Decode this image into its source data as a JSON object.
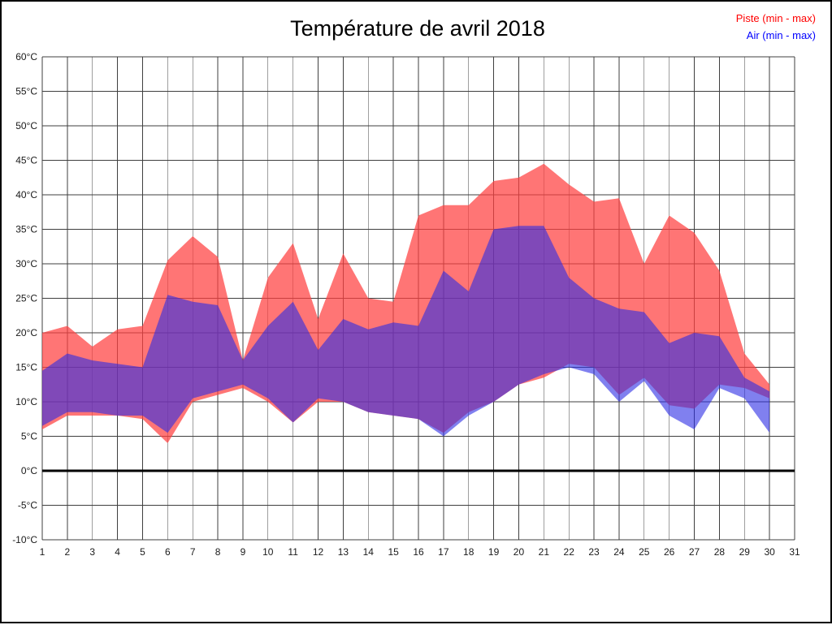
{
  "title": "Température de avril 2018",
  "legend": {
    "piste_label": "Piste (min - max)",
    "air_label": "Air (min - max)",
    "piste_color": "#ff0000",
    "air_color": "#0000ff"
  },
  "chart_data": {
    "type": "area",
    "title": "Température de avril 2018",
    "xlabel": "",
    "ylabel": "",
    "xlim": [
      1,
      31
    ],
    "ylim": [
      -10,
      60
    ],
    "grid": true,
    "legend_position": "top-right",
    "zero_line": true,
    "x": [
      1,
      2,
      3,
      4,
      5,
      6,
      7,
      8,
      9,
      10,
      11,
      12,
      13,
      14,
      15,
      16,
      17,
      18,
      19,
      20,
      21,
      22,
      23,
      24,
      25,
      26,
      27,
      28,
      29,
      30
    ],
    "series": [
      {
        "name": "Piste max",
        "values": [
          20,
          21,
          18,
          20.5,
          21,
          30.5,
          34,
          31,
          16,
          28,
          33,
          22,
          31.5,
          25,
          24.5,
          37,
          38.5,
          38.5,
          42,
          42.5,
          44.5,
          41.5,
          39,
          39.5,
          30,
          37,
          34.5,
          29,
          17,
          12.5
        ]
      },
      {
        "name": "Piste min",
        "values": [
          6,
          8,
          8,
          8,
          7.5,
          4,
          10,
          11,
          12,
          10,
          7,
          10,
          10,
          8.5,
          8,
          7.5,
          5.5,
          8.5,
          10,
          12.5,
          13.5,
          15.5,
          15,
          11,
          13.5,
          9.5,
          9,
          12.5,
          12,
          10.5
        ]
      },
      {
        "name": "Air max",
        "values": [
          14.5,
          17,
          16,
          15.5,
          15,
          25.5,
          24.5,
          24,
          16,
          21,
          24.5,
          17.5,
          22,
          20.5,
          21.5,
          21,
          29,
          26,
          35,
          35.5,
          35.5,
          28,
          25,
          23.5,
          23,
          18.5,
          20,
          19.5,
          13.5,
          11.5
        ]
      },
      {
        "name": "Air min",
        "values": [
          6.5,
          8.5,
          8.5,
          8,
          8,
          5.5,
          10.5,
          11.5,
          12.5,
          10.5,
          7,
          10.5,
          10,
          8.5,
          8,
          7.5,
          5,
          8,
          10,
          12.5,
          14,
          15,
          14,
          10,
          13,
          8,
          6,
          12,
          10.5,
          5.5
        ]
      }
    ],
    "band_colors": {
      "piste": "rgba(255,64,64,0.72)",
      "air": "rgba(43,43,228,0.60)"
    },
    "yticks": [
      -10,
      -5,
      0,
      5,
      10,
      15,
      20,
      25,
      30,
      35,
      40,
      45,
      50,
      55,
      60
    ],
    "ytick_labels": [
      "-10°C",
      "-5°C",
      "0°C",
      "5°C",
      "10°C",
      "15°C",
      "20°C",
      "25°C",
      "30°C",
      "35°C",
      "40°C",
      "45°C",
      "50°C",
      "55°C",
      "60°C"
    ],
    "xtick_labels": [
      "1",
      "2",
      "3",
      "4",
      "5",
      "6",
      "7",
      "8",
      "9",
      "10",
      "11",
      "12",
      "13",
      "14",
      "15",
      "16",
      "17",
      "18",
      "19",
      "20",
      "21",
      "22",
      "23",
      "24",
      "25",
      "26",
      "27",
      "28",
      "29",
      "30",
      "31"
    ]
  }
}
